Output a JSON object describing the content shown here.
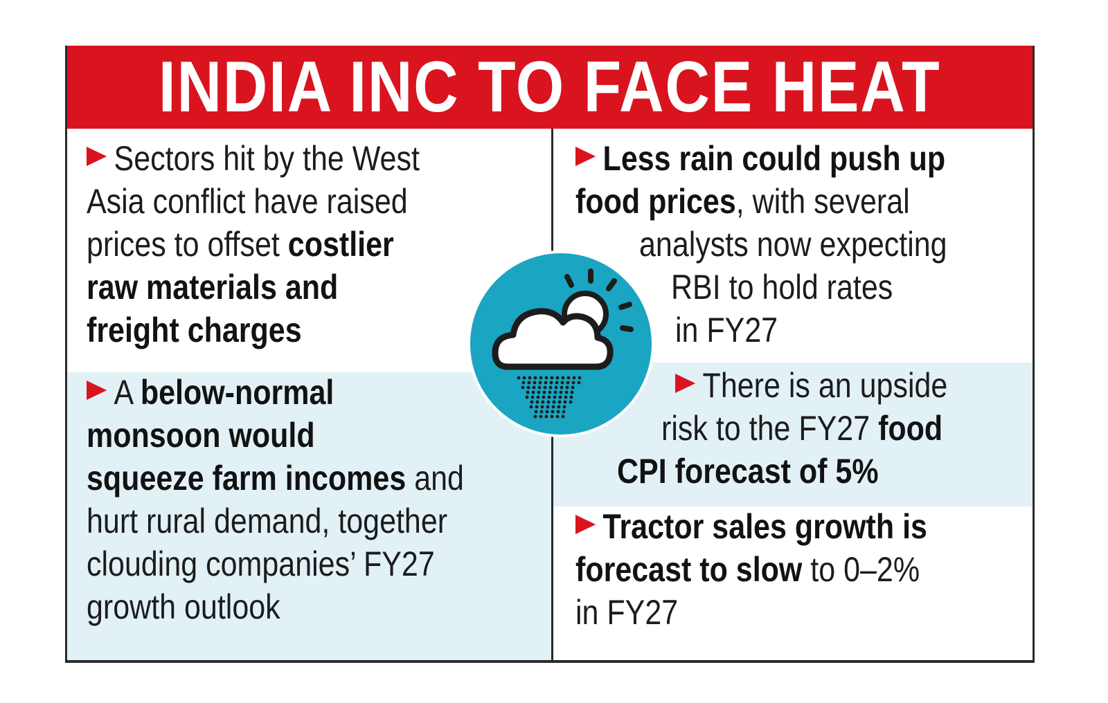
{
  "title": "INDIA INC TO FACE HEAT",
  "colors": {
    "header": "#d9141f",
    "shade": "#e2f1f6",
    "icon_circle": "#1aa6c2",
    "arrow": "#d9141f"
  },
  "icon": "cloud-sun-rain-icon",
  "points": {
    "left_top": {
      "t1": "Sectors hit by the West",
      "t2": "Asia conflict have raised",
      "t3": "prices to offset ",
      "b1": "costlier",
      "b2": "raw materials and",
      "b3": "freight charges"
    },
    "left_bottom": {
      "t1": "A ",
      "b1": "below-normal",
      "b2": "monsoon would",
      "b3": "squeeze farm incomes",
      "t2": " and",
      "t3": "hurt rural demand, together",
      "t4": "clouding companies’ FY27",
      "t5": "growth outlook"
    },
    "right_top": {
      "b1": "Less rain could push up",
      "b2": "food prices",
      "t1": ", with several",
      "t2": "analysts now expecting",
      "t3": "RBI to hold rates",
      "t4": "in FY27"
    },
    "right_mid": {
      "t1": "There is an upside",
      "t2": "risk to the FY27 ",
      "b1": "food",
      "b2": "CPI forecast of 5%"
    },
    "right_bottom": {
      "b1": "Tractor sales growth is",
      "b2": "forecast to slow",
      "t1": " to 0–2%",
      "t2": "in FY27"
    }
  }
}
